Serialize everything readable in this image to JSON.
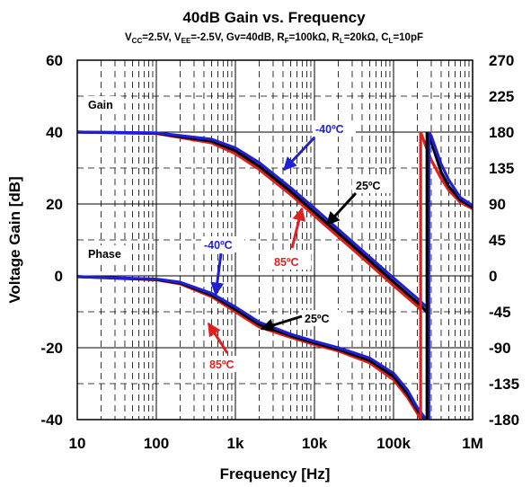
{
  "chart_data": {
    "type": "line",
    "title": "40dB Gain vs. Frequency",
    "subtitle": {
      "p1": "V",
      "p1s": "CC",
      "p2": "=2.5V, V",
      "p2s": "EE",
      "p3": "=-2.5V, Gv=40dB, R",
      "p3s": "F",
      "p4": "=100kΩ, R",
      "p4s": "L",
      "p5": "=20kΩ, C",
      "p5s": "L",
      "p6": "=10pF"
    },
    "xlabel": "Frequency [Hz]",
    "ylabel": "Voltage Gain [dB]",
    "x_scale": "log",
    "xlim": [
      10,
      1000000
    ],
    "ylim": [
      -40,
      60
    ],
    "y2lim": [
      -180,
      270
    ],
    "grid": true,
    "x_tick_labels": [
      "10",
      "100",
      "1k",
      "10k",
      "100k",
      "1M"
    ],
    "y_tick_labels": [
      "-40",
      "-20",
      "0",
      "20",
      "40",
      "60"
    ],
    "y2_tick_labels": [
      "-180",
      "-135",
      "-90",
      "-45",
      "0",
      "45",
      "90",
      "135",
      "180",
      "225",
      "270"
    ],
    "colors": {
      "-40C": "#1f1fd6",
      "25C": "#000000",
      "85C": "#e01f1f"
    },
    "section_labels": {
      "gain": "Gain",
      "phase": "Phase"
    },
    "annotations": {
      "gain_m40": "-40ºC",
      "gain_25": "25ºC",
      "gain_85": "85ºC",
      "phase_m40": "-40ºC",
      "phase_25": "25ºC",
      "phase_85": "85ºC"
    },
    "series": [
      {
        "name": "-40ºC",
        "group": "gain",
        "color": "#1f1fd6",
        "x": [
          10,
          100,
          500,
          1000,
          2000,
          5000,
          10000,
          50000,
          100000,
          200000,
          250000,
          280000
        ],
        "y": [
          40,
          39.8,
          38,
          35.6,
          31.5,
          24.5,
          18.8,
          5.2,
          -0.6,
          -6.3,
          -8.3,
          -9.2
        ]
      },
      {
        "name": "25ºC",
        "group": "gain",
        "color": "#000000",
        "x": [
          10,
          100,
          500,
          1000,
          2000,
          5000,
          10000,
          50000,
          100000,
          200000,
          240000,
          265000
        ],
        "y": [
          40,
          39.7,
          37.5,
          34.8,
          30.5,
          23.5,
          17.7,
          4.2,
          -1.7,
          -7.4,
          -9.1,
          -10.2
        ]
      },
      {
        "name": "85ºC",
        "group": "gain",
        "color": "#e01f1f",
        "x": [
          10,
          100,
          500,
          1000,
          2000,
          5000,
          10000,
          50000,
          100000,
          200000,
          220000
        ],
        "y": [
          40,
          39.6,
          37,
          34,
          29.6,
          22.6,
          16.7,
          3.2,
          -2.7,
          -8.4,
          -9.5
        ]
      },
      {
        "name": "-40ºC",
        "group": "phase",
        "color": "#1f1fd6",
        "x": [
          10,
          100,
          200,
          500,
          1000,
          2000,
          5000,
          10000,
          20000,
          50000,
          100000,
          150000,
          200000,
          250000,
          280000
        ],
        "y": [
          -1,
          -4,
          -8,
          -22,
          -39,
          -58,
          -73,
          -82,
          -90,
          -103,
          -122,
          -143,
          -165,
          -178,
          -180
        ]
      },
      {
        "name": "25ºC",
        "group": "phase",
        "color": "#000000",
        "x": [
          10,
          100,
          200,
          500,
          1000,
          2000,
          5000,
          10000,
          20000,
          50000,
          100000,
          150000,
          200000,
          240000,
          265000
        ],
        "y": [
          -1,
          -4.5,
          -9,
          -24,
          -42,
          -61,
          -75,
          -84,
          -92,
          -106,
          -126,
          -148,
          -168,
          -178,
          -180
        ]
      },
      {
        "name": "85ºC",
        "group": "phase",
        "color": "#e01f1f",
        "x": [
          10,
          100,
          200,
          500,
          1000,
          2000,
          5000,
          10000,
          20000,
          50000,
          100000,
          150000,
          200000,
          220000
        ],
        "y": [
          -1,
          -5,
          -10,
          -26,
          -45,
          -64,
          -77,
          -86,
          -94,
          -109,
          -130,
          -152,
          -172,
          -180
        ]
      },
      {
        "name": "-40ºC",
        "group": "phase-wrapped",
        "color": "#1f1fd6",
        "x": [
          280000,
          300000,
          400000,
          500000,
          700000,
          1000000
        ],
        "y": [
          180,
          175,
          140,
          120,
          98,
          88
        ]
      },
      {
        "name": "25ºC",
        "group": "phase-wrapped",
        "color": "#000000",
        "x": [
          265000,
          290000,
          400000,
          500000,
          700000,
          1000000
        ],
        "y": [
          180,
          172,
          130,
          112,
          95,
          86
        ]
      },
      {
        "name": "85ºC",
        "group": "phase-wrapped",
        "color": "#e01f1f",
        "x": [
          220000,
          250000,
          300000,
          400000,
          500000,
          700000,
          1000000
        ],
        "y": [
          180,
          165,
          145,
          122,
          107,
          92,
          84
        ]
      }
    ]
  }
}
